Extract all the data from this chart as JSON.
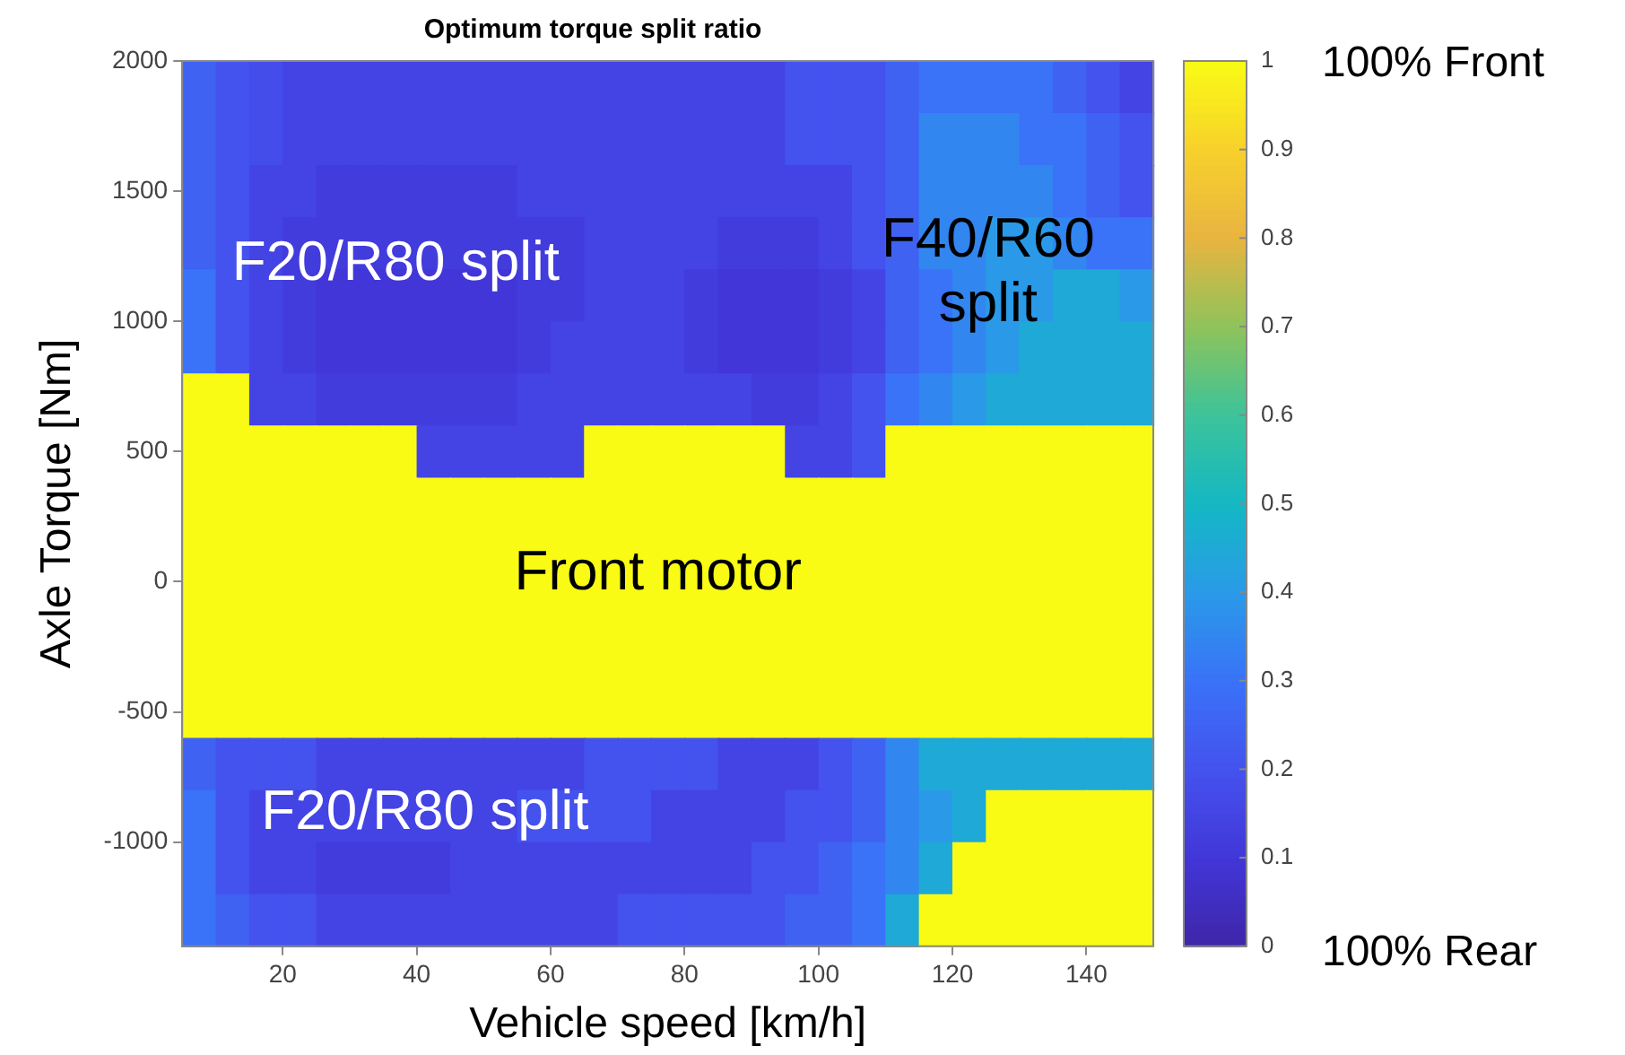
{
  "chart_data": {
    "type": "heatmap",
    "title": "Optimum torque split ratio",
    "xlabel": "Vehicle speed [km/h]",
    "ylabel": "Axle Torque [Nm]",
    "x": [
      7.5,
      12.5,
      17.5,
      22.5,
      27.5,
      32.5,
      37.5,
      42.5,
      47.5,
      52.5,
      57.5,
      62.5,
      67.5,
      72.5,
      77.5,
      82.5,
      87.5,
      92.5,
      97.5,
      102.5,
      107.5,
      112.5,
      117.5,
      122.5,
      127.5,
      132.5,
      137.5,
      142.5,
      147.5
    ],
    "xlim": [
      5,
      150
    ],
    "xticks": [
      20,
      40,
      60,
      80,
      100,
      120,
      140
    ],
    "ylim": [
      -1400,
      2000
    ],
    "yticks": [
      -1000,
      -500,
      0,
      500,
      1000,
      1500,
      2000
    ],
    "clim": [
      0,
      1
    ],
    "cticks": [
      0,
      0.1,
      0.2,
      0.3,
      0.4,
      0.5,
      0.6,
      0.7,
      0.8,
      0.9,
      1
    ],
    "cells": [
      [
        0.25,
        0.2,
        0.18,
        0.15,
        0.15,
        0.15,
        0.15,
        0.15,
        0.15,
        0.15,
        0.15,
        0.15,
        0.15,
        0.15,
        0.15,
        0.15,
        0.15,
        0.15,
        0.2,
        0.2,
        0.2,
        0.25,
        0.3,
        0.3,
        0.3,
        0.3,
        0.25,
        0.2,
        0.15
      ],
      [
        0.25,
        0.2,
        0.18,
        0.15,
        0.15,
        0.15,
        0.15,
        0.15,
        0.15,
        0.15,
        0.15,
        0.15,
        0.15,
        0.15,
        0.15,
        0.15,
        0.15,
        0.15,
        0.2,
        0.2,
        0.2,
        0.25,
        0.35,
        0.35,
        0.35,
        0.3,
        0.3,
        0.25,
        0.2
      ],
      [
        0.25,
        0.2,
        0.15,
        0.15,
        0.12,
        0.12,
        0.12,
        0.12,
        0.12,
        0.12,
        0.15,
        0.15,
        0.15,
        0.15,
        0.15,
        0.15,
        0.15,
        0.15,
        0.15,
        0.15,
        0.2,
        0.25,
        0.35,
        0.35,
        0.35,
        0.35,
        0.3,
        0.25,
        0.2
      ],
      [
        0.25,
        0.2,
        0.15,
        0.12,
        0.12,
        0.12,
        0.12,
        0.12,
        0.12,
        0.12,
        0.12,
        0.12,
        0.15,
        0.15,
        0.15,
        0.15,
        0.12,
        0.12,
        0.12,
        0.15,
        0.2,
        0.25,
        0.35,
        0.35,
        0.4,
        0.4,
        0.35,
        0.3,
        0.3
      ],
      [
        0.3,
        0.2,
        0.15,
        0.12,
        0.1,
        0.1,
        0.1,
        0.1,
        0.1,
        0.1,
        0.12,
        0.12,
        0.15,
        0.15,
        0.15,
        0.12,
        0.1,
        0.1,
        0.1,
        0.12,
        0.15,
        0.25,
        0.3,
        0.35,
        0.4,
        0.4,
        0.45,
        0.45,
        0.4
      ],
      [
        0.3,
        0.2,
        0.15,
        0.12,
        0.1,
        0.1,
        0.1,
        0.1,
        0.1,
        0.1,
        0.12,
        0.15,
        0.15,
        0.15,
        0.15,
        0.12,
        0.1,
        0.1,
        0.1,
        0.12,
        0.15,
        0.25,
        0.3,
        0.35,
        0.4,
        0.45,
        0.45,
        0.45,
        0.45
      ],
      [
        1,
        1,
        0.15,
        0.15,
        0.12,
        0.12,
        0.12,
        0.12,
        0.12,
        0.12,
        0.15,
        0.15,
        0.15,
        0.15,
        0.15,
        0.15,
        0.15,
        0.12,
        0.12,
        0.15,
        0.2,
        0.3,
        0.35,
        0.4,
        0.45,
        0.45,
        0.45,
        0.45,
        0.45
      ],
      [
        1,
        1,
        1,
        1,
        1,
        1,
        1,
        0.15,
        0.15,
        0.15,
        0.15,
        0.15,
        1,
        1,
        1,
        1,
        1,
        1,
        0.15,
        0.15,
        0.2,
        1,
        1,
        1,
        1,
        1,
        1,
        1,
        1
      ],
      [
        1,
        1,
        1,
        1,
        1,
        1,
        1,
        1,
        1,
        1,
        1,
        1,
        1,
        1,
        1,
        1,
        1,
        1,
        1,
        1,
        1,
        1,
        1,
        1,
        1,
        1,
        1,
        1,
        1
      ],
      [
        1,
        1,
        1,
        1,
        1,
        1,
        1,
        1,
        1,
        1,
        1,
        1,
        1,
        1,
        1,
        1,
        1,
        1,
        1,
        1,
        1,
        1,
        1,
        1,
        1,
        1,
        1,
        1,
        1
      ],
      [
        1,
        1,
        1,
        1,
        1,
        1,
        1,
        1,
        1,
        1,
        1,
        1,
        1,
        1,
        1,
        1,
        1,
        1,
        1,
        1,
        1,
        1,
        1,
        1,
        1,
        1,
        1,
        1,
        1
      ],
      [
        1,
        1,
        1,
        1,
        1,
        1,
        1,
        1,
        1,
        1,
        1,
        1,
        1,
        1,
        1,
        1,
        1,
        1,
        1,
        1,
        1,
        1,
        1,
        1,
        1,
        1,
        1,
        1,
        1
      ],
      [
        1,
        1,
        1,
        1,
        1,
        1,
        1,
        1,
        1,
        1,
        1,
        1,
        1,
        1,
        1,
        1,
        1,
        1,
        1,
        1,
        1,
        1,
        1,
        1,
        1,
        1,
        1,
        1,
        1
      ],
      [
        0.25,
        0.2,
        0.2,
        0.2,
        0.15,
        0.15,
        0.15,
        0.15,
        0.15,
        0.15,
        0.15,
        0.15,
        0.2,
        0.2,
        0.2,
        0.2,
        0.15,
        0.15,
        0.15,
        0.2,
        0.25,
        0.35,
        0.45,
        0.45,
        0.45,
        0.45,
        0.45,
        0.45,
        0.45
      ],
      [
        0.3,
        0.2,
        0.15,
        0.15,
        0.15,
        0.15,
        0.15,
        0.15,
        0.15,
        0.15,
        0.2,
        0.2,
        0.2,
        0.2,
        0.15,
        0.15,
        0.15,
        0.15,
        0.2,
        0.2,
        0.25,
        0.35,
        0.4,
        0.45,
        1,
        1,
        1,
        1,
        1
      ],
      [
        0.3,
        0.2,
        0.15,
        0.15,
        0.12,
        0.12,
        0.12,
        0.12,
        0.15,
        0.15,
        0.15,
        0.15,
        0.15,
        0.15,
        0.15,
        0.15,
        0.15,
        0.2,
        0.2,
        0.25,
        0.3,
        0.35,
        0.45,
        1,
        1,
        1,
        1,
        1,
        1
      ],
      [
        0.3,
        0.25,
        0.2,
        0.2,
        0.15,
        0.15,
        0.15,
        0.15,
        0.15,
        0.15,
        0.15,
        0.15,
        0.15,
        0.2,
        0.2,
        0.2,
        0.2,
        0.2,
        0.25,
        0.25,
        0.3,
        0.45,
        1,
        1,
        1,
        1,
        1,
        1,
        1
      ]
    ],
    "annotations": [
      "F20/R80 split",
      "F40/R60 split",
      "Front motor",
      "F20/R80 split",
      "100% Front",
      "100% Rear"
    ]
  }
}
